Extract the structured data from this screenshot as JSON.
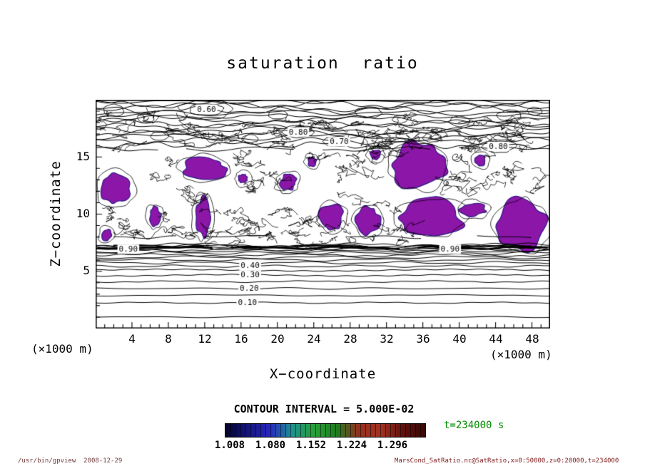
{
  "title": "saturation  ratio",
  "axes": {
    "y_label": "Z−coordinate",
    "x_label": "X−coordinate",
    "y_unit": "(×1000 m)",
    "x_unit": "(×1000 m)",
    "y_ticks": [
      "5",
      "10",
      "15"
    ],
    "x_ticks": [
      "4",
      "8",
      "12",
      "16",
      "20",
      "24",
      "28",
      "32",
      "36",
      "40",
      "44",
      "48"
    ]
  },
  "contour_info": {
    "interval_label": "CONTOUR INTERVAL = 5.000E-02"
  },
  "colorbar": {
    "labels": [
      "1.008",
      "1.080",
      "1.152",
      "1.224",
      "1.296"
    ],
    "colors": [
      "#04032a",
      "#15157a",
      "#2727c0",
      "#1f8f8f",
      "#28a038",
      "#1e7c20",
      "#94301e",
      "#a03224",
      "#5e100c",
      "#380806"
    ]
  },
  "time_label": "t=234000 s",
  "footer": {
    "left": "/usr/bin/gpview  2008-12-29",
    "right": "MarsCond_SatRatio.nc@SatRatio,x=0:50000,z=0:20000,t=234000"
  },
  "colors": {
    "fill": "#8b16a8",
    "time": "#008a00",
    "footer_left": "#6e3a3a",
    "footer_right": "#7d1616"
  },
  "chart_data": {
    "type": "contour",
    "title": "saturation ratio",
    "xlabel": "X-coordinate (x1000 m)",
    "ylabel": "Z-coordinate (x1000 m)",
    "x_range": [
      0,
      50
    ],
    "z_range": [
      0,
      20
    ],
    "x_ticks": [
      4,
      8,
      12,
      16,
      20,
      24,
      28,
      32,
      36,
      40,
      44,
      48
    ],
    "z_ticks": [
      5,
      10,
      15
    ],
    "contour_interval": 0.05,
    "time_seconds": 234000,
    "colorbar_values": [
      1.008,
      1.08,
      1.152,
      1.224,
      1.296
    ],
    "filled_region_color": "#8b16a8",
    "inline_labels": [
      {
        "text": "0.60",
        "x": 12.2,
        "z": 19.15
      },
      {
        "text": "0.80",
        "x": 22.3,
        "z": 17.15
      },
      {
        "text": "0.70",
        "x": 26.8,
        "z": 16.3
      },
      {
        "text": "0.80",
        "x": 44.3,
        "z": 15.9
      },
      {
        "text": "0.90",
        "x": 3.6,
        "z": 6.9
      },
      {
        "text": "0.90",
        "x": 39.0,
        "z": 6.9
      },
      {
        "text": "0.40",
        "x": 17.0,
        "z": 5.45
      },
      {
        "text": "0.30",
        "x": 17.0,
        "z": 4.65
      },
      {
        "text": "0.20",
        "x": 16.9,
        "z": 3.5
      },
      {
        "text": "0.10",
        "x": 16.7,
        "z": 2.25
      }
    ],
    "lower_contours": [
      [
        0.05,
        1.0
      ],
      [
        0.1,
        2.25
      ],
      [
        0.15,
        2.9
      ],
      [
        0.2,
        3.5
      ],
      [
        0.25,
        4.1
      ],
      [
        0.3,
        4.65
      ],
      [
        0.35,
        5.1
      ],
      [
        0.4,
        5.45
      ],
      [
        0.45,
        5.75
      ],
      [
        0.5,
        6.0
      ],
      [
        0.55,
        6.22
      ],
      [
        0.6,
        6.42
      ],
      [
        0.65,
        6.6
      ],
      [
        0.7,
        6.75
      ],
      [
        0.75,
        6.88
      ],
      [
        0.8,
        7.0
      ],
      [
        0.85,
        7.1
      ],
      [
        0.9,
        7.2
      ],
      [
        0.95,
        7.3
      ]
    ],
    "upper_contour_z": [
      16.05,
      16.4,
      16.75,
      17.05,
      17.35,
      17.65,
      17.95,
      18.25,
      18.55,
      18.85,
      19.1,
      19.35,
      19.6,
      19.85
    ],
    "filled_regions": [
      {
        "x": 2.2,
        "z": 12.2,
        "rx": 1.8,
        "rz": 1.3
      },
      {
        "x": 1.2,
        "z": 8.2,
        "rx": 0.5,
        "rz": 0.5
      },
      {
        "x": 6.5,
        "z": 9.8,
        "rx": 0.6,
        "rz": 0.8
      },
      {
        "x": 12.0,
        "z": 14.0,
        "rx": 2.4,
        "rz": 0.9
      },
      {
        "x": 11.8,
        "z": 9.7,
        "rx": 0.8,
        "rz": 1.7
      },
      {
        "x": 16.2,
        "z": 13.1,
        "rx": 0.5,
        "rz": 0.4
      },
      {
        "x": 21.2,
        "z": 12.8,
        "rx": 0.9,
        "rz": 0.7
      },
      {
        "x": 23.8,
        "z": 14.6,
        "rx": 0.5,
        "rz": 0.4
      },
      {
        "x": 26.0,
        "z": 9.8,
        "rx": 1.3,
        "rz": 1.1
      },
      {
        "x": 30.0,
        "z": 9.4,
        "rx": 1.3,
        "rz": 1.2
      },
      {
        "x": 30.8,
        "z": 15.2,
        "rx": 0.6,
        "rz": 0.4
      },
      {
        "x": 35.5,
        "z": 14.3,
        "rx": 3.0,
        "rz": 1.9
      },
      {
        "x": 37.0,
        "z": 9.7,
        "rx": 3.4,
        "rz": 1.6
      },
      {
        "x": 41.5,
        "z": 10.4,
        "rx": 1.5,
        "rz": 0.55
      },
      {
        "x": 42.3,
        "z": 14.7,
        "rx": 0.6,
        "rz": 0.5
      },
      {
        "x": 46.8,
        "z": 9.0,
        "rx": 2.7,
        "rz": 2.2
      }
    ]
  }
}
